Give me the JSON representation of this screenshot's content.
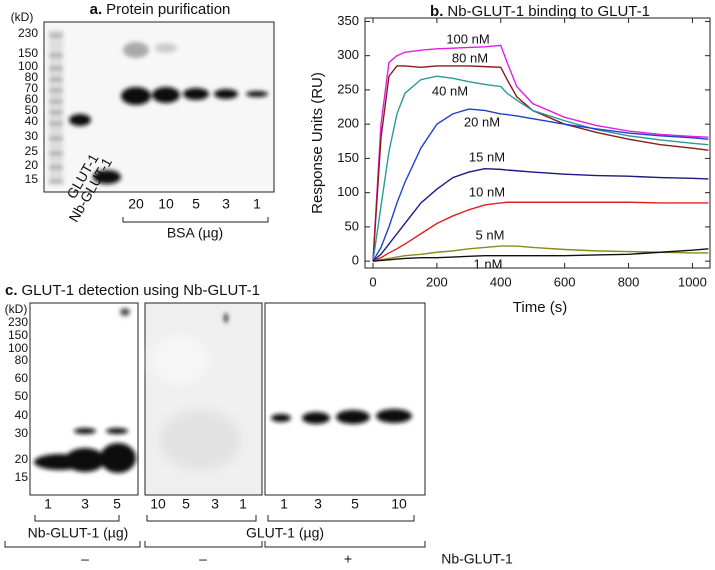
{
  "panel_a": {
    "letter": "a.",
    "title": "Protein purification",
    "unit": "(kD)",
    "markers": [
      230,
      150,
      100,
      80,
      70,
      60,
      50,
      40,
      30,
      25,
      20,
      15
    ],
    "lanes": [
      "GLUT-1",
      "Nb-GLUT-1"
    ],
    "bsa_lanes": [
      20,
      10,
      5,
      3,
      1
    ],
    "bsa_label": "BSA (µg)"
  },
  "chart_data": {
    "type": "line",
    "letter": "b.",
    "title": "Nb-GLUT-1 binding to GLUT-1",
    "x_label": "Time (s)",
    "y_label": "Response Units (RU)",
    "x": [
      0,
      25,
      50,
      75,
      100,
      150,
      200,
      250,
      300,
      350,
      400,
      420,
      450,
      500,
      600,
      700,
      800,
      900,
      1000,
      1050
    ],
    "xlim": [
      -25,
      1055
    ],
    "ylim": [
      -10,
      355
    ],
    "xticks": [
      0,
      200,
      400,
      600,
      800,
      1000
    ],
    "yticks": [
      0,
      50,
      100,
      150,
      200,
      250,
      300,
      350
    ],
    "series": [
      {
        "name": "100 nM",
        "color": "#e020e0",
        "values": [
          0,
          200,
          290,
          300,
          305,
          308,
          310,
          311,
          312,
          313,
          315,
          290,
          255,
          230,
          210,
          198,
          190,
          185,
          182,
          181
        ]
      },
      {
        "name": "80 nM",
        "color": "#8b1a1a",
        "values": [
          0,
          180,
          270,
          285,
          285,
          283,
          285,
          285,
          285,
          284,
          283,
          265,
          240,
          220,
          200,
          188,
          178,
          170,
          165,
          162
        ]
      },
      {
        "name": "40 nM",
        "color": "#2a9a9a",
        "values": [
          0,
          80,
          160,
          215,
          245,
          265,
          270,
          267,
          262,
          258,
          255,
          245,
          235,
          220,
          205,
          192,
          183,
          177,
          172,
          170
        ]
      },
      {
        "name": "20 nM",
        "color": "#1f3fd0",
        "values": [
          0,
          20,
          50,
          85,
          115,
          165,
          200,
          215,
          222,
          220,
          215,
          214,
          212,
          208,
          200,
          193,
          187,
          183,
          180,
          178
        ]
      },
      {
        "name": "15 nM",
        "color": "#1a1a80",
        "values": [
          0,
          10,
          25,
          40,
          55,
          85,
          105,
          122,
          130,
          135,
          134,
          133,
          132,
          130,
          127,
          125,
          124,
          122,
          121,
          120
        ]
      },
      {
        "name": "10 nM",
        "color": "#e02020",
        "values": [
          0,
          5,
          12,
          18,
          25,
          40,
          55,
          66,
          75,
          82,
          85,
          86,
          86,
          86,
          86,
          86,
          86,
          85,
          85,
          85
        ]
      },
      {
        "name": "5 nM",
        "color": "#8a8a20",
        "values": [
          0,
          2,
          4,
          6,
          8,
          10,
          13,
          15,
          18,
          20,
          22,
          22,
          22,
          20,
          17,
          15,
          14,
          13,
          12,
          12
        ]
      },
      {
        "name": "1 nM",
        "color": "#111111",
        "values": [
          0,
          1,
          2,
          3,
          4,
          5,
          5,
          6,
          7,
          8,
          8,
          8,
          8,
          8,
          8,
          9,
          10,
          13,
          16,
          18
        ]
      }
    ]
  },
  "panel_c": {
    "letter": "c.",
    "title": "GLUT-1 detection using Nb-GLUT-1",
    "unit": "(kD)",
    "markers": [
      230,
      150,
      100,
      80,
      60,
      50,
      40,
      30,
      20,
      15
    ],
    "group1_lanes": [
      1,
      3,
      5
    ],
    "group1_label": "Nb-GLUT-1 (µg)",
    "group2_lanes": [
      10,
      5,
      3,
      1
    ],
    "group3_lanes": [
      1,
      3,
      5,
      10
    ],
    "group23_label": "GLUT-1 (µg)",
    "conditions": [
      "–",
      "–",
      "+"
    ],
    "condition_label": "Nb-GLUT-1"
  }
}
